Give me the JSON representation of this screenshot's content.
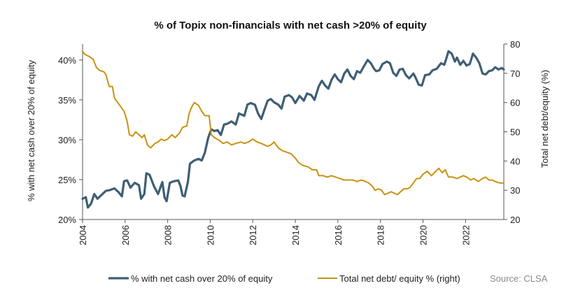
{
  "chart_data": {
    "type": "line",
    "title": "% of Topix non-financials with net cash >20% of equity",
    "ylabel_left": "% with net cash over 20% of equity",
    "ylabel_right": "Total net debt/equity (%)",
    "y_left": {
      "min": 20,
      "max": 42,
      "ticks": [
        "20%",
        "25%",
        "30%",
        "35%",
        "40%"
      ],
      "tick_values": [
        20,
        25,
        30,
        35,
        40
      ]
    },
    "y_right": {
      "min": 20,
      "max": 80,
      "ticks": [
        "20",
        "30",
        "40",
        "50",
        "60",
        "70",
        "80"
      ],
      "tick_values": [
        20,
        30,
        40,
        50,
        60,
        70,
        80
      ]
    },
    "x": {
      "min": 2004,
      "max": 2023.8,
      "ticks": [
        "2004",
        "2006",
        "2008",
        "2010",
        "2012",
        "2014",
        "2016",
        "2018",
        "2020",
        "2022"
      ],
      "tick_values": [
        2004,
        2006,
        2008,
        2010,
        2012,
        2014,
        2016,
        2018,
        2020,
        2022
      ]
    },
    "grid": false,
    "legend_position": "bottom",
    "series": [
      {
        "name": "% with net cash over 20% of equity",
        "axis": "left",
        "color": "#3e5f75",
        "points": [
          [
            2004.0,
            22.6
          ],
          [
            2004.15,
            22.8
          ],
          [
            2004.25,
            21.5
          ],
          [
            2004.4,
            22.0
          ],
          [
            2004.55,
            23.2
          ],
          [
            2004.7,
            22.6
          ],
          [
            2004.9,
            23.1
          ],
          [
            2005.1,
            23.6
          ],
          [
            2005.3,
            23.7
          ],
          [
            2005.5,
            23.9
          ],
          [
            2005.7,
            23.4
          ],
          [
            2005.85,
            22.9
          ],
          [
            2005.95,
            24.8
          ],
          [
            2006.1,
            24.9
          ],
          [
            2006.25,
            24.0
          ],
          [
            2006.45,
            24.6
          ],
          [
            2006.65,
            24.3
          ],
          [
            2006.75,
            22.6
          ],
          [
            2006.9,
            23.2
          ],
          [
            2007.0,
            25.8
          ],
          [
            2007.15,
            25.6
          ],
          [
            2007.35,
            24.2
          ],
          [
            2007.55,
            23.2
          ],
          [
            2007.75,
            24.7
          ],
          [
            2007.85,
            22.8
          ],
          [
            2007.95,
            22.3
          ],
          [
            2008.1,
            24.6
          ],
          [
            2008.3,
            24.8
          ],
          [
            2008.5,
            24.9
          ],
          [
            2008.6,
            24.2
          ],
          [
            2008.7,
            23.0
          ],
          [
            2008.8,
            22.9
          ],
          [
            2008.95,
            24.7
          ],
          [
            2009.05,
            27.0
          ],
          [
            2009.25,
            27.4
          ],
          [
            2009.45,
            27.6
          ],
          [
            2009.6,
            27.4
          ],
          [
            2009.75,
            28.4
          ],
          [
            2009.9,
            30.2
          ],
          [
            2010.05,
            31.3
          ],
          [
            2010.2,
            31.1
          ],
          [
            2010.35,
            31.2
          ],
          [
            2010.5,
            30.6
          ],
          [
            2010.65,
            31.9
          ],
          [
            2010.8,
            32.0
          ],
          [
            2011.0,
            32.3
          ],
          [
            2011.2,
            31.9
          ],
          [
            2011.35,
            33.3
          ],
          [
            2011.6,
            33.0
          ],
          [
            2011.75,
            34.4
          ],
          [
            2011.9,
            34.6
          ],
          [
            2012.1,
            34.4
          ],
          [
            2012.25,
            33.3
          ],
          [
            2012.4,
            32.6
          ],
          [
            2012.55,
            33.8
          ],
          [
            2012.7,
            34.9
          ],
          [
            2012.85,
            35.1
          ],
          [
            2013.0,
            34.7
          ],
          [
            2013.2,
            34.4
          ],
          [
            2013.35,
            33.9
          ],
          [
            2013.5,
            35.4
          ],
          [
            2013.7,
            35.6
          ],
          [
            2013.85,
            35.3
          ],
          [
            2014.0,
            34.6
          ],
          [
            2014.2,
            35.5
          ],
          [
            2014.4,
            34.9
          ],
          [
            2014.55,
            35.8
          ],
          [
            2014.75,
            35.6
          ],
          [
            2014.9,
            35.0
          ],
          [
            2015.1,
            36.7
          ],
          [
            2015.25,
            37.4
          ],
          [
            2015.4,
            36.8
          ],
          [
            2015.55,
            36.4
          ],
          [
            2015.7,
            37.5
          ],
          [
            2015.85,
            38.2
          ],
          [
            2016.0,
            37.6
          ],
          [
            2016.15,
            37.2
          ],
          [
            2016.3,
            38.3
          ],
          [
            2016.45,
            38.8
          ],
          [
            2016.6,
            38.0
          ],
          [
            2016.75,
            37.6
          ],
          [
            2016.9,
            38.6
          ],
          [
            2017.05,
            38.4
          ],
          [
            2017.2,
            39.1
          ],
          [
            2017.4,
            40.0
          ],
          [
            2017.55,
            39.6
          ],
          [
            2017.7,
            38.9
          ],
          [
            2017.8,
            38.6
          ],
          [
            2017.95,
            38.7
          ],
          [
            2018.1,
            39.5
          ],
          [
            2018.3,
            39.8
          ],
          [
            2018.45,
            39.6
          ],
          [
            2018.6,
            38.4
          ],
          [
            2018.75,
            38.0
          ],
          [
            2018.9,
            38.8
          ],
          [
            2019.05,
            38.9
          ],
          [
            2019.2,
            38.1
          ],
          [
            2019.35,
            37.7
          ],
          [
            2019.55,
            38.3
          ],
          [
            2019.65,
            37.8
          ],
          [
            2019.8,
            36.9
          ],
          [
            2019.95,
            36.8
          ],
          [
            2020.1,
            38.1
          ],
          [
            2020.3,
            38.2
          ],
          [
            2020.45,
            38.7
          ],
          [
            2020.65,
            38.9
          ],
          [
            2020.85,
            39.6
          ],
          [
            2021.0,
            39.4
          ],
          [
            2021.1,
            40.2
          ],
          [
            2021.2,
            41.1
          ],
          [
            2021.35,
            40.8
          ],
          [
            2021.5,
            39.8
          ],
          [
            2021.6,
            40.3
          ],
          [
            2021.75,
            39.4
          ],
          [
            2021.9,
            39.9
          ],
          [
            2022.05,
            39.3
          ],
          [
            2022.2,
            39.5
          ],
          [
            2022.35,
            40.8
          ],
          [
            2022.5,
            40.3
          ],
          [
            2022.65,
            39.6
          ],
          [
            2022.8,
            38.3
          ],
          [
            2022.95,
            38.2
          ],
          [
            2023.1,
            38.6
          ],
          [
            2023.25,
            38.7
          ],
          [
            2023.4,
            39.1
          ],
          [
            2023.55,
            38.8
          ],
          [
            2023.7,
            39.0
          ],
          [
            2023.8,
            38.8
          ]
        ]
      },
      {
        "name": "Total net debt/ equity % (right)",
        "axis": "right",
        "color": "#c99211",
        "points": [
          [
            2004.0,
            77.5
          ],
          [
            2004.1,
            76.5
          ],
          [
            2004.3,
            75.8
          ],
          [
            2004.5,
            74.8
          ],
          [
            2004.65,
            72.0
          ],
          [
            2004.8,
            71.0
          ],
          [
            2005.0,
            70.5
          ],
          [
            2005.1,
            69.5
          ],
          [
            2005.25,
            65.5
          ],
          [
            2005.4,
            65.5
          ],
          [
            2005.5,
            61.5
          ],
          [
            2005.65,
            60.0
          ],
          [
            2005.8,
            58.5
          ],
          [
            2005.95,
            57.0
          ],
          [
            2006.1,
            53.5
          ],
          [
            2006.2,
            49.0
          ],
          [
            2006.35,
            48.5
          ],
          [
            2006.5,
            50.0
          ],
          [
            2006.65,
            49.0
          ],
          [
            2006.8,
            48.0
          ],
          [
            2006.9,
            49.0
          ],
          [
            2007.05,
            45.5
          ],
          [
            2007.2,
            44.5
          ],
          [
            2007.4,
            46.0
          ],
          [
            2007.55,
            46.5
          ],
          [
            2007.7,
            47.5
          ],
          [
            2007.85,
            47.0
          ],
          [
            2008.0,
            47.5
          ],
          [
            2008.2,
            49.0
          ],
          [
            2008.35,
            48.0
          ],
          [
            2008.55,
            49.5
          ],
          [
            2008.7,
            51.5
          ],
          [
            2008.9,
            52.0
          ],
          [
            2009.0,
            56.0
          ],
          [
            2009.1,
            58.0
          ],
          [
            2009.25,
            60.0
          ],
          [
            2009.45,
            59.0
          ],
          [
            2009.6,
            57.0
          ],
          [
            2009.75,
            55.5
          ],
          [
            2009.95,
            55.5
          ],
          [
            2010.05,
            49.0
          ],
          [
            2010.2,
            48.0
          ],
          [
            2010.45,
            47.0
          ],
          [
            2010.6,
            46.0
          ],
          [
            2010.8,
            46.5
          ],
          [
            2011.0,
            45.5
          ],
          [
            2011.2,
            46.0
          ],
          [
            2011.45,
            46.5
          ],
          [
            2011.6,
            46.0
          ],
          [
            2011.8,
            46.5
          ],
          [
            2012.0,
            47.5
          ],
          [
            2012.2,
            46.5
          ],
          [
            2012.4,
            46.0
          ],
          [
            2012.55,
            45.5
          ],
          [
            2012.7,
            45.0
          ],
          [
            2012.85,
            45.5
          ],
          [
            2013.0,
            46.5
          ],
          [
            2013.2,
            44.5
          ],
          [
            2013.4,
            43.5
          ],
          [
            2013.6,
            43.0
          ],
          [
            2013.8,
            42.5
          ],
          [
            2014.0,
            41.0
          ],
          [
            2014.15,
            39.5
          ],
          [
            2014.35,
            38.5
          ],
          [
            2014.6,
            38.0
          ],
          [
            2014.8,
            37.0
          ],
          [
            2015.0,
            37.0
          ],
          [
            2015.1,
            35.0
          ],
          [
            2015.3,
            35.0
          ],
          [
            2015.5,
            34.5
          ],
          [
            2015.7,
            35.0
          ],
          [
            2015.9,
            34.5
          ],
          [
            2016.1,
            34.0
          ],
          [
            2016.3,
            33.5
          ],
          [
            2016.5,
            33.5
          ],
          [
            2016.7,
            33.5
          ],
          [
            2016.9,
            33.0
          ],
          [
            2017.1,
            33.5
          ],
          [
            2017.3,
            33.0
          ],
          [
            2017.45,
            32.5
          ],
          [
            2017.6,
            31.5
          ],
          [
            2017.75,
            30.0
          ],
          [
            2017.9,
            30.5
          ],
          [
            2018.05,
            30.0
          ],
          [
            2018.2,
            28.5
          ],
          [
            2018.35,
            29.0
          ],
          [
            2018.5,
            29.5
          ],
          [
            2018.65,
            29.0
          ],
          [
            2018.8,
            28.5
          ],
          [
            2018.95,
            29.5
          ],
          [
            2019.1,
            30.5
          ],
          [
            2019.25,
            30.5
          ],
          [
            2019.4,
            31.0
          ],
          [
            2019.55,
            32.5
          ],
          [
            2019.7,
            34.0
          ],
          [
            2019.85,
            34.0
          ],
          [
            2020.0,
            35.5
          ],
          [
            2020.2,
            36.5
          ],
          [
            2020.4,
            35.0
          ],
          [
            2020.6,
            36.5
          ],
          [
            2020.75,
            37.5
          ],
          [
            2020.9,
            36.0
          ],
          [
            2021.05,
            37.0
          ],
          [
            2021.2,
            34.5
          ],
          [
            2021.4,
            34.5
          ],
          [
            2021.6,
            34.0
          ],
          [
            2021.75,
            34.5
          ],
          [
            2021.9,
            35.0
          ],
          [
            2022.05,
            34.5
          ],
          [
            2022.25,
            33.5
          ],
          [
            2022.4,
            34.0
          ],
          [
            2022.6,
            33.0
          ],
          [
            2022.8,
            34.0
          ],
          [
            2022.95,
            34.5
          ],
          [
            2023.1,
            33.5
          ],
          [
            2023.25,
            33.5
          ],
          [
            2023.4,
            33.0
          ],
          [
            2023.6,
            32.5
          ],
          [
            2023.8,
            32.5
          ]
        ]
      }
    ],
    "source": "Source: CLSA"
  }
}
